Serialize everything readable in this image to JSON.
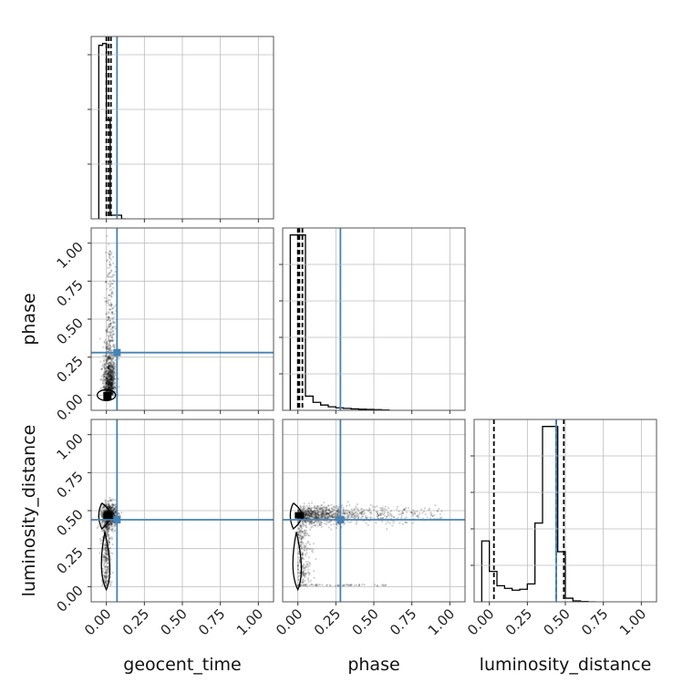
{
  "chart_data": {
    "type": "corner",
    "parameters": [
      "geocent_time",
      "phase",
      "luminosity_distance"
    ],
    "axis_range": [
      -0.1,
      1.1
    ],
    "ticks": [
      0.0,
      0.25,
      0.5,
      0.75,
      1.0
    ],
    "tick_labels": [
      "0.00",
      "0.25",
      "0.50",
      "0.75",
      "1.00"
    ],
    "grid": true,
    "colors": {
      "truth": "#4682b4",
      "histogram": "#000000",
      "samples": "#000000"
    },
    "truths": {
      "geocent_time": 0.07,
      "phase": 0.28,
      "luminosity_distance": 0.44
    },
    "histograms": {
      "geocent_time": {
        "edges": [
          -0.05,
          -0.025,
          0.0,
          0.025,
          0.05,
          0.075,
          0.1,
          0.125
        ],
        "counts": [
          0.96,
          0.97,
          0.55,
          0.02,
          0.02,
          0.02,
          0.0
        ],
        "quantiles": [
          0.0,
          0.015,
          0.03
        ]
      },
      "phase": {
        "edges": [
          -0.05,
          0.0,
          0.05,
          0.1,
          0.15,
          0.2,
          0.25,
          0.3,
          0.35,
          0.4,
          0.45,
          0.5,
          0.55,
          0.6
        ],
        "counts": [
          0.99,
          0.99,
          0.08,
          0.045,
          0.03,
          0.02,
          0.014,
          0.011,
          0.008,
          0.006,
          0.005,
          0.004,
          0.002
        ],
        "quantiles": [
          0.0,
          0.01,
          0.03
        ]
      },
      "luminosity_distance": {
        "edges": [
          -0.05,
          0.0,
          0.05,
          0.1,
          0.15,
          0.2,
          0.25,
          0.3,
          0.35,
          0.4,
          0.45,
          0.5,
          0.55,
          0.6,
          0.65,
          0.7
        ],
        "counts": [
          0.34,
          0.17,
          0.09,
          0.075,
          0.065,
          0.07,
          0.1,
          0.44,
          0.98,
          0.98,
          0.28,
          0.02,
          0.005,
          0.002,
          0.0
        ],
        "quantiles": [
          0.03,
          0.44,
          0.49
        ]
      }
    },
    "scatter_summary": {
      "phase_vs_geocent_time": {
        "mode": [
          0.0,
          0.0
        ],
        "spread_x": 0.025,
        "spread_y": "0.0 to 1.0"
      },
      "luminosity_distance_vs_geocent_time": {
        "modes": [
          [
            0.0,
            0.47
          ],
          [
            0.0,
            0.02
          ]
        ]
      },
      "luminosity_distance_vs_phase": {
        "modes": [
          [
            0.0,
            0.47
          ],
          [
            0.0,
            0.02
          ]
        ],
        "spread_x": "0.0 to 1.0 near y 0.47"
      }
    }
  }
}
